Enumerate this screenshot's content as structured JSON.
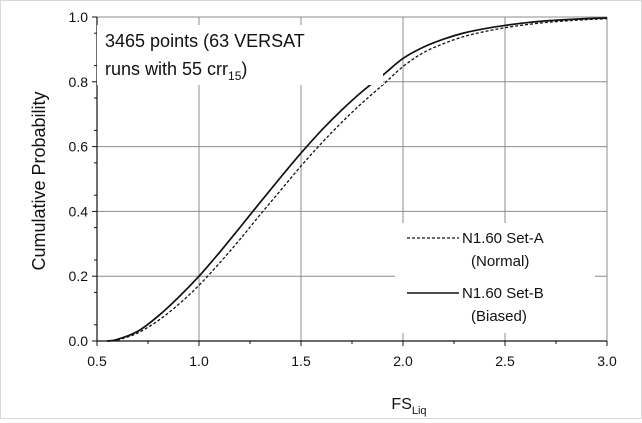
{
  "chart_data": {
    "type": "line",
    "xlabel": "FS",
    "xlabel_sub": "Liq",
    "ylabel": "Cumulative Probability",
    "xlim": [
      0.5,
      3.0
    ],
    "ylim": [
      0.0,
      1.0
    ],
    "xticks": [
      "0.5",
      "1.0",
      "1.5",
      "2.0",
      "2.5",
      "3.0"
    ],
    "yticks": [
      "0.0",
      "0.2",
      "0.4",
      "0.6",
      "0.8",
      "1.0"
    ],
    "grid": true,
    "annotation": {
      "line1": "3465 points (63 VERSAT",
      "line2": "runs with 55 crr",
      "line2_sub": "15",
      "line2_end": ")"
    },
    "legend": {
      "placement": "bottom-right",
      "entries": [
        {
          "line1": "N1.60 Set-A",
          "line2": "(Normal)",
          "style": "dashed"
        },
        {
          "line1": "N1.60 Set-B",
          "line2": "(Biased)",
          "style": "solid"
        }
      ]
    },
    "series": [
      {
        "style": "dashed",
        "x": [
          0.55,
          0.6,
          0.7,
          0.8,
          0.9,
          1.0,
          1.1,
          1.2,
          1.3,
          1.4,
          1.5,
          1.6,
          1.7,
          1.8,
          1.9,
          2.0,
          2.1,
          2.2,
          2.3,
          2.4,
          2.5,
          2.6,
          2.7,
          2.8,
          2.9,
          3.0
        ],
        "y": [
          0.0,
          0.003,
          0.025,
          0.063,
          0.113,
          0.172,
          0.24,
          0.313,
          0.39,
          0.465,
          0.54,
          0.61,
          0.675,
          0.735,
          0.79,
          0.847,
          0.89,
          0.918,
          0.94,
          0.955,
          0.967,
          0.976,
          0.983,
          0.988,
          0.992,
          0.995
        ]
      },
      {
        "style": "solid",
        "x": [
          0.55,
          0.6,
          0.7,
          0.8,
          0.9,
          1.0,
          1.1,
          1.2,
          1.3,
          1.4,
          1.5,
          1.6,
          1.7,
          1.8,
          1.9,
          2.0,
          2.1,
          2.2,
          2.3,
          2.4,
          2.5,
          2.6,
          2.7,
          2.8,
          2.9,
          3.0
        ],
        "y": [
          0.0,
          0.005,
          0.03,
          0.077,
          0.135,
          0.2,
          0.273,
          0.35,
          0.428,
          0.505,
          0.58,
          0.65,
          0.713,
          0.77,
          0.82,
          0.872,
          0.907,
          0.932,
          0.951,
          0.964,
          0.974,
          0.982,
          0.988,
          0.992,
          0.995,
          0.997
        ]
      }
    ]
  }
}
